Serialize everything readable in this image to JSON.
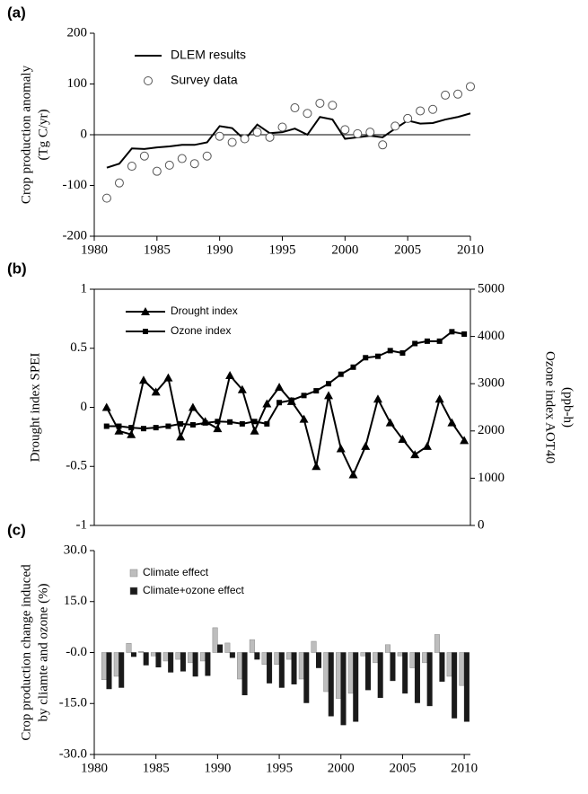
{
  "chart_data": [
    {
      "type": "line",
      "panel_label": "(a)",
      "y_label": [
        "Crop production anomaly",
        "(Tg C/yr)"
      ],
      "x": [
        1981,
        1982,
        1983,
        1984,
        1985,
        1986,
        1987,
        1988,
        1989,
        1990,
        1991,
        1992,
        1993,
        1994,
        1995,
        1996,
        1997,
        1998,
        1999,
        2000,
        2001,
        2002,
        2003,
        2004,
        2005,
        2006,
        2007,
        2008,
        2009,
        2010
      ],
      "xlim": [
        1980,
        2010
      ],
      "xticks": [
        1980,
        1985,
        1990,
        1995,
        2000,
        2005,
        2010
      ],
      "ylim": [
        -200,
        200
      ],
      "yticks": [
        -200,
        -100,
        0,
        100,
        200
      ],
      "frame": "open",
      "zero_line": true,
      "legend": "upper left",
      "legend_font": "large",
      "series": [
        {
          "name": "DLEM results",
          "color": "#000000",
          "connect": true,
          "marker": "none",
          "values": [
            -65,
            -57,
            -27,
            -28,
            -25,
            -23,
            -20,
            -20,
            -15,
            17,
            13,
            -10,
            20,
            3,
            5,
            12,
            0,
            35,
            30,
            -8,
            -5,
            -2,
            -5,
            12,
            28,
            22,
            23,
            30,
            35,
            42
          ]
        },
        {
          "name": "Survey data",
          "color": "#555555",
          "connect": false,
          "marker": "circle",
          "values": [
            -125,
            -95,
            -62,
            -42,
            -72,
            -60,
            -47,
            -57,
            -42,
            -3,
            -15,
            -8,
            5,
            -5,
            15,
            53,
            42,
            62,
            58,
            10,
            2,
            5,
            -20,
            17,
            32,
            47,
            50,
            78,
            80,
            95
          ]
        }
      ]
    },
    {
      "type": "line",
      "panel_label": "(b)",
      "y_label": [
        "Drought index SPEI"
      ],
      "y2_label": [
        "Ozone index AOT40",
        "(ppb-h)"
      ],
      "x": [
        1981,
        1982,
        1983,
        1984,
        1985,
        1986,
        1987,
        1988,
        1989,
        1990,
        1991,
        1992,
        1993,
        1994,
        1995,
        1996,
        1997,
        1998,
        1999,
        2000,
        2001,
        2002,
        2003,
        2004,
        2005,
        2006,
        2007,
        2008,
        2009,
        2010
      ],
      "xlim": [
        1980,
        2010.5
      ],
      "ylim": [
        -1,
        1
      ],
      "yticks": [
        -1,
        -0.5,
        0,
        0.5,
        1
      ],
      "y2lim": [
        0,
        5000
      ],
      "y2ticks": [
        0,
        1000,
        2000,
        3000,
        4000,
        5000
      ],
      "frame": "box",
      "zero_line": false,
      "legend": "upper left",
      "legend_font": "medium",
      "series": [
        {
          "name": "Drought index",
          "color": "#000000",
          "connect": true,
          "marker": "triangle",
          "values": [
            0,
            -0.2,
            -0.23,
            0.23,
            0.13,
            0.25,
            -0.25,
            0,
            -0.12,
            -0.18,
            0.27,
            0.15,
            -0.2,
            0.03,
            0.17,
            0.05,
            -0.1,
            -0.5,
            0.1,
            -0.35,
            -0.57,
            -0.33,
            0.07,
            -0.13,
            -0.27,
            -0.4,
            -0.33,
            0.07,
            -0.13,
            -0.28
          ]
        },
        {
          "name": "Ozone index",
          "color": "#000000",
          "connect": true,
          "marker": "square",
          "axis": "y2",
          "values": [
            2100,
            2100,
            2070,
            2050,
            2070,
            2100,
            2150,
            2130,
            2170,
            2200,
            2190,
            2150,
            2200,
            2150,
            2600,
            2650,
            2750,
            2850,
            3000,
            3200,
            3350,
            3550,
            3580,
            3700,
            3650,
            3850,
            3900,
            3900,
            4100,
            4050
          ]
        }
      ]
    },
    {
      "type": "bar",
      "panel_label": "(c)",
      "y_label": [
        "Crop production change induced",
        "by cliamte and ozone (%)"
      ],
      "x": [
        1981,
        1982,
        1983,
        1984,
        1985,
        1986,
        1987,
        1988,
        1989,
        1990,
        1991,
        1992,
        1993,
        1994,
        1995,
        1996,
        1997,
        1998,
        1999,
        2000,
        2001,
        2002,
        2003,
        2004,
        2005,
        2006,
        2007,
        2008,
        2009,
        2010
      ],
      "xlim": [
        1980,
        2010.5
      ],
      "xticks": [
        1980,
        1985,
        1990,
        1995,
        2000,
        2005,
        2010
      ],
      "ylim": [
        -30,
        30
      ],
      "yticks": [
        {
          "value": -30,
          "label": "-30.0"
        },
        {
          "value": -15,
          "label": "-15.0"
        },
        {
          "value": 0,
          "label": "-0.0"
        },
        {
          "value": 15,
          "label": "15.0"
        },
        {
          "value": 30,
          "label": "30.0"
        }
      ],
      "frame": "open",
      "zero_line": false,
      "legend": "upper left",
      "legend_font": "small",
      "series": [
        {
          "name": "Climate effect",
          "color": "#bdbdbd",
          "values": [
            -8,
            -7,
            2.7,
            0.3,
            -1,
            -2.5,
            -2,
            -3,
            -2.5,
            7.3,
            2.8,
            -7.8,
            3.8,
            -3.5,
            -3.5,
            -2,
            -7.8,
            3.3,
            -11.5,
            -13.5,
            -12,
            -1,
            -3,
            2.3,
            -1,
            -4.5,
            -3,
            5.3,
            -7,
            -9.7
          ]
        },
        {
          "name": "Climate+ozone effect",
          "color": "#1a1a1a",
          "values": [
            -10.7,
            -10.3,
            -1.2,
            -3.7,
            -4.3,
            -5.8,
            -5.5,
            -7,
            -6.8,
            2.3,
            -1.5,
            -12.5,
            -2,
            -9,
            -10.3,
            -9.3,
            -14.8,
            -4.5,
            -18.7,
            -21.3,
            -20.3,
            -11,
            -13.3,
            -8.3,
            -12,
            -14.8,
            -15.7,
            -8.5,
            -19.3,
            -20.3
          ]
        }
      ]
    }
  ]
}
